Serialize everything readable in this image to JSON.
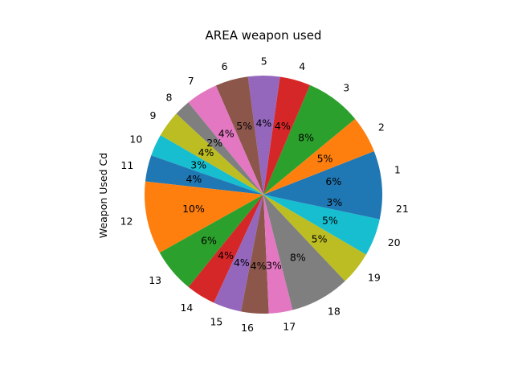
{
  "chart_data": {
    "type": "pie",
    "title": "AREA weapon used",
    "ylabel": "Weapon Used Cd",
    "start_angle_deg": 0,
    "direction": "counterclockwise",
    "slices": [
      {
        "label": "1",
        "pct_label": "6%",
        "value": 6.07,
        "color": "#1f77b4"
      },
      {
        "label": "2",
        "pct_label": "5%",
        "value": 5.13,
        "color": "#ff7f0e"
      },
      {
        "label": "3",
        "pct_label": "8%",
        "value": 7.78,
        "color": "#2ca02c"
      },
      {
        "label": "4",
        "pct_label": "4%",
        "value": 4.26,
        "color": "#d62728"
      },
      {
        "label": "5",
        "pct_label": "4%",
        "value": 4.39,
        "color": "#9467bd"
      },
      {
        "label": "6",
        "pct_label": "5%",
        "value": 4.56,
        "color": "#8c564b"
      },
      {
        "label": "7",
        "pct_label": "4%",
        "value": 4.43,
        "color": "#e377c2"
      },
      {
        "label": "8",
        "pct_label": "2%",
        "value": 2.26,
        "color": "#7f7f7f"
      },
      {
        "label": "9",
        "pct_label": "4%",
        "value": 3.65,
        "color": "#bcbd22"
      },
      {
        "label": "10",
        "pct_label": "3%",
        "value": 3.04,
        "color": "#17becf"
      },
      {
        "label": "11",
        "pct_label": "4%",
        "value": 3.65,
        "color": "#1f77b4"
      },
      {
        "label": "12",
        "pct_label": "10%",
        "value": 10.07,
        "color": "#ff7f0e"
      },
      {
        "label": "13",
        "pct_label": "6%",
        "value": 6.15,
        "color": "#2ca02c"
      },
      {
        "label": "14",
        "pct_label": "4%",
        "value": 4.09,
        "color": "#d62728"
      },
      {
        "label": "15",
        "pct_label": "4%",
        "value": 3.91,
        "color": "#9467bd"
      },
      {
        "label": "16",
        "pct_label": "4%",
        "value": 3.82,
        "color": "#8c564b"
      },
      {
        "label": "17",
        "pct_label": "3%",
        "value": 3.3,
        "color": "#e377c2"
      },
      {
        "label": "18",
        "pct_label": "8%",
        "value": 8.26,
        "color": "#7f7f7f"
      },
      {
        "label": "19",
        "pct_label": "5%",
        "value": 4.65,
        "color": "#bcbd22"
      },
      {
        "label": "20",
        "pct_label": "5%",
        "value": 5.17,
        "color": "#17becf"
      },
      {
        "label": "21",
        "pct_label": "3%",
        "value": 3.39,
        "color": "#1f77b4"
      }
    ]
  }
}
